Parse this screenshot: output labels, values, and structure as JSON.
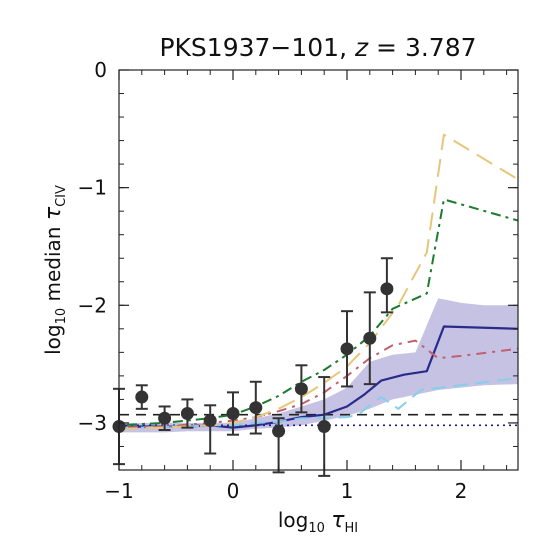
{
  "chart_data": {
    "type": "line",
    "title": {
      "main": "PKS1937−101, ",
      "var": "z",
      "rest": " = 3.787"
    },
    "xlabel": {
      "prefix": "log",
      "sub": "10",
      "sym": "τ",
      "sym_sub": "HI"
    },
    "ylabel": {
      "prefix": "log",
      "sub": "10",
      "mid": " median ",
      "sym": "τ",
      "sym_sub": "CIV"
    },
    "xlim": [
      -1,
      2.5
    ],
    "ylim": [
      -3.4,
      0
    ],
    "x_ticks": [
      -1,
      0,
      1,
      2
    ],
    "x_tick_labels": [
      "−1",
      "0",
      "1",
      "2"
    ],
    "y_ticks": [
      -3,
      -2,
      -1,
      0
    ],
    "y_tick_labels": [
      "−3",
      "−2",
      "−1",
      "0"
    ],
    "grid": false,
    "observed": {
      "x": [
        -1.0,
        -0.8,
        -0.6,
        -0.4,
        -0.2,
        0.0,
        0.2,
        0.4,
        0.6,
        0.8,
        1.0,
        1.2,
        1.35
      ],
      "y": [
        -3.03,
        -2.78,
        -2.96,
        -2.92,
        -2.98,
        -2.92,
        -2.87,
        -3.07,
        -2.71,
        -3.03,
        -2.37,
        -2.28,
        -1.86
      ],
      "y_err_low": [
        0.32,
        0.1,
        0.1,
        0.12,
        0.28,
        0.18,
        0.22,
        0.35,
        0.2,
        0.42,
        0.32,
        0.39,
        0.2
      ],
      "y_err_high": [
        0.32,
        0.1,
        0.1,
        0.12,
        0.13,
        0.18,
        0.22,
        0.11,
        0.2,
        0.42,
        0.32,
        0.39,
        0.26
      ]
    },
    "band": {
      "x": [
        -1.0,
        -0.8,
        -0.6,
        -0.4,
        -0.2,
        0.0,
        0.2,
        0.4,
        0.6,
        0.8,
        1.0,
        1.2,
        1.4,
        1.6,
        1.8,
        2.0,
        2.2,
        2.5
      ],
      "lower": [
        -3.08,
        -3.08,
        -3.08,
        -3.07,
        -3.07,
        -3.07,
        -3.05,
        -3.04,
        -3.02,
        -2.98,
        -2.94,
        -2.88,
        -2.8,
        -2.76,
        -2.72,
        -2.7,
        -2.68,
        -2.67
      ],
      "upper": [
        -3.0,
        -3.0,
        -3.0,
        -3.0,
        -3.0,
        -3.0,
        -2.96,
        -2.92,
        -2.86,
        -2.8,
        -2.7,
        -2.48,
        -2.42,
        -2.4,
        -1.94,
        -1.98,
        -2.0,
        -2.0
      ],
      "color": "#b6b1db"
    },
    "series": [
      {
        "x": [
          -1.0,
          -0.8,
          -0.6,
          -0.4,
          -0.2,
          0.0,
          0.2,
          0.4,
          0.6,
          0.8,
          1.0,
          1.15,
          1.3,
          1.5,
          1.7,
          1.85,
          2.5
        ],
        "y": [
          -3.04,
          -3.03,
          -3.03,
          -3.03,
          -3.02,
          -3.04,
          -3.02,
          -2.99,
          -2.95,
          -2.93,
          -2.86,
          -2.76,
          -2.64,
          -2.59,
          -2.56,
          -2.18,
          -2.2
        ],
        "color": "#2a2a8a",
        "dash": "",
        "width": 2.2
      },
      {
        "x": [
          -1.0,
          -0.8,
          -0.6,
          -0.4,
          -0.2,
          0.0,
          0.2,
          0.4,
          0.6,
          0.8,
          1.0,
          1.1,
          1.2,
          1.3,
          1.45,
          1.65,
          2.5
        ],
        "y": [
          -3.04,
          -3.04,
          -3.03,
          -3.03,
          -3.02,
          -3.02,
          -3.0,
          -2.99,
          -2.96,
          -2.96,
          -2.95,
          -2.93,
          -2.85,
          -2.78,
          -2.88,
          -2.72,
          -2.62
        ],
        "color": "#87ceeb",
        "dash": "14,8",
        "width": 2
      },
      {
        "x": [
          -1.0,
          -0.6,
          -0.2,
          0.0,
          0.2,
          0.4,
          0.6,
          0.8,
          1.0,
          1.2,
          1.4,
          1.6,
          1.8,
          2.0,
          2.5
        ],
        "y": [
          -3.04,
          -3.03,
          -3.0,
          -2.98,
          -2.95,
          -2.9,
          -2.84,
          -2.74,
          -2.6,
          -2.45,
          -2.34,
          -2.3,
          -2.45,
          -2.43,
          -2.37
        ],
        "color": "#c06070",
        "dash": "3,6,10,6",
        "width": 2
      },
      {
        "x": [
          -1.0,
          -0.6,
          -0.2,
          0.0,
          0.2,
          0.4,
          0.6,
          0.8,
          1.0,
          1.2,
          1.4,
          1.7,
          1.85,
          2.5
        ],
        "y": [
          -3.02,
          -3.0,
          -2.96,
          -2.93,
          -2.86,
          -2.77,
          -2.65,
          -2.55,
          -2.42,
          -2.26,
          -2.03,
          -1.9,
          -1.1,
          -1.28
        ],
        "color": "#1b7b2e",
        "dash": "3,5,10,5",
        "width": 2
      },
      {
        "x": [
          -1.0,
          -0.6,
          -0.2,
          0.0,
          0.2,
          0.4,
          0.6,
          0.8,
          1.0,
          1.2,
          1.45,
          1.7,
          1.85,
          2.5
        ],
        "y": [
          -3.05,
          -3.04,
          -3.02,
          -3.0,
          -2.95,
          -2.88,
          -2.78,
          -2.66,
          -2.52,
          -2.32,
          -2.0,
          -1.55,
          -0.55,
          -0.93
        ],
        "color": "#e5c77a",
        "dash": "18,9",
        "width": 2
      }
    ],
    "reference_lines": [
      {
        "y": -2.93,
        "color": "#222222",
        "dash": "10,7",
        "width": 1.6
      },
      {
        "y": -3.02,
        "color": "#1a1a9a",
        "dash": "2,4",
        "width": 1.6
      }
    ],
    "colors": {
      "marker": "#333333",
      "axis": "#222222"
    }
  }
}
